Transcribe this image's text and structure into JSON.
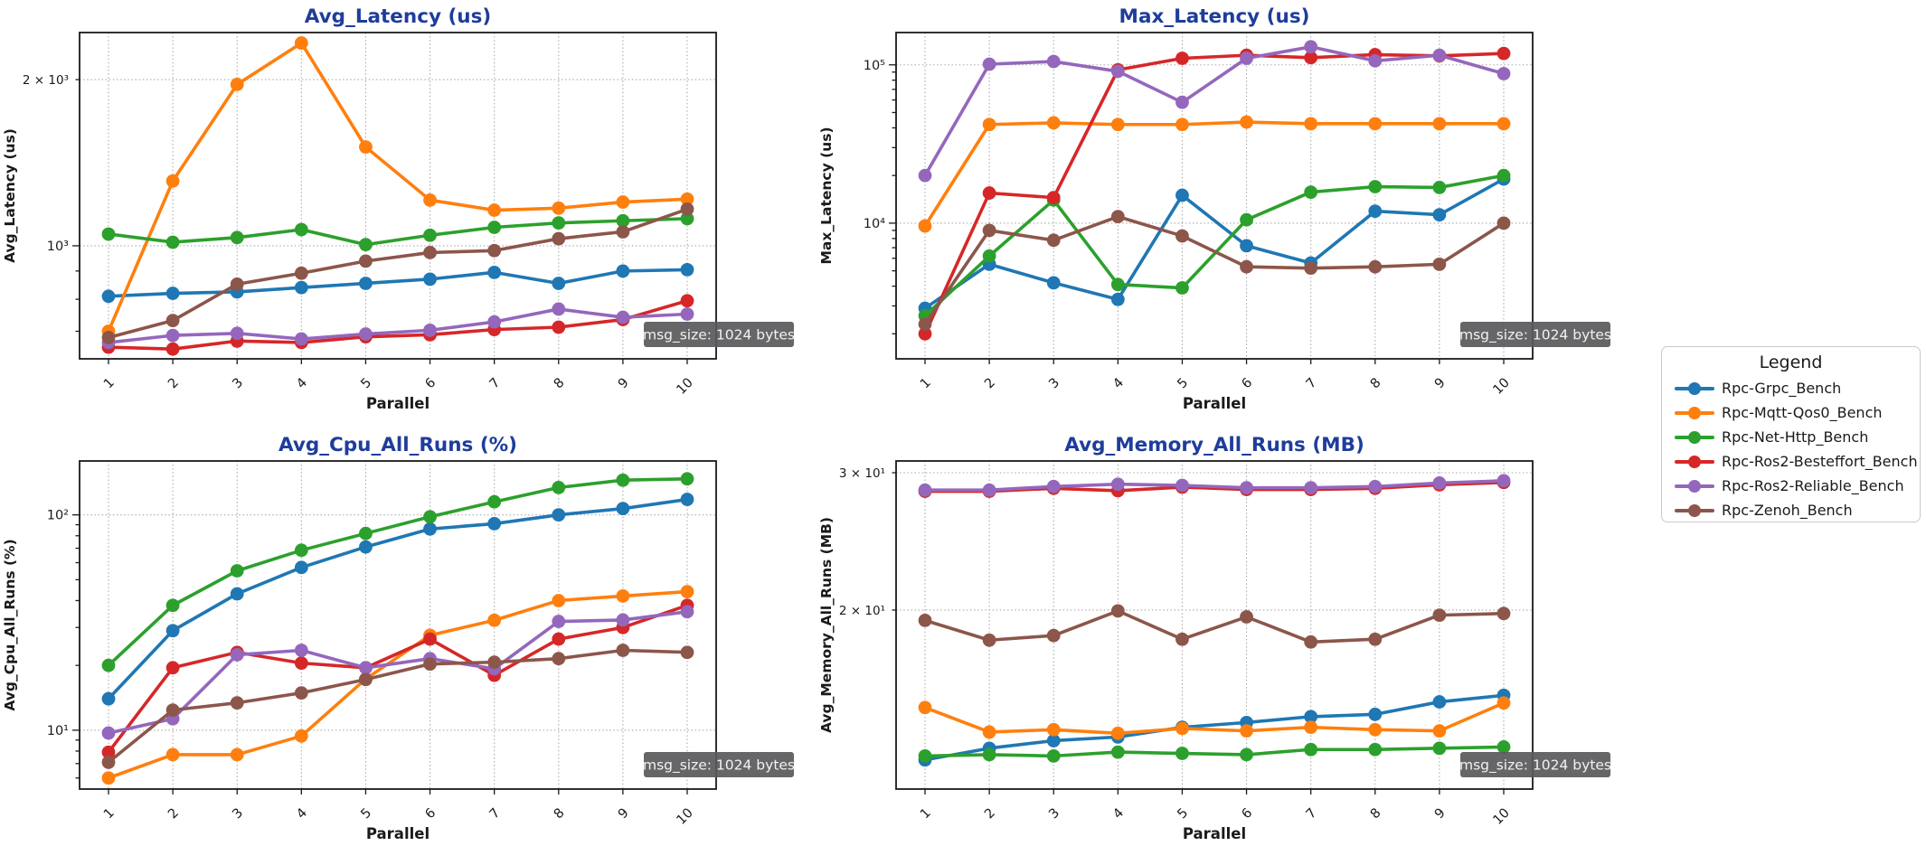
{
  "window": {
    "background": "#ffffff"
  },
  "styles": {
    "title_color": "#1e3d9b",
    "spine_color": "#1a1a1a",
    "grid_color": "#aaaaaa",
    "tick_label_color": "#1a1a1a",
    "annotation_bg": "#59595b",
    "annotation_fg": "#f2f2f2"
  },
  "annotation_label": "msg_size: 1024 bytes",
  "legend": {
    "title": "Legend",
    "position": "right-center",
    "items": [
      {
        "label": "Rpc-Grpc_Bench",
        "color": "#1f77b4"
      },
      {
        "label": "Rpc-Mqtt-Qos0_Bench",
        "color": "#ff7f0e"
      },
      {
        "label": "Rpc-Net-Http_Bench",
        "color": "#2ca02c"
      },
      {
        "label": "Rpc-Ros2-Besteffort_Bench",
        "color": "#d62728"
      },
      {
        "label": "Rpc-Ros2-Reliable_Bench",
        "color": "#9467bd"
      },
      {
        "label": "Rpc-Zenoh_Bench",
        "color": "#8c564b"
      }
    ]
  },
  "chart_data": [
    {
      "id": "avg-latency",
      "type": "line",
      "title": "Avg_Latency (us)",
      "xlabel": "Parallel",
      "ylabel": "Avg_Latency (us)",
      "yscale": "log",
      "grid": true,
      "annotation": "msg_size: 1024 bytes",
      "x": [
        1,
        2,
        3,
        4,
        5,
        6,
        7,
        8,
        9,
        10
      ],
      "ylim": [
        624,
        2434
      ],
      "yticks": [
        {
          "v": 1000,
          "label": "10³",
          "major": true
        },
        {
          "v": 2000,
          "label": "2 × 10³",
          "major": false
        }
      ],
      "series": [
        {
          "name": "Rpc-Grpc_Bench",
          "color": "#1f77b4",
          "values": [
            810,
            820,
            825,
            840,
            855,
            870,
            895,
            855,
            900,
            905
          ]
        },
        {
          "name": "Rpc-Mqtt-Qos0_Bench",
          "color": "#ff7f0e",
          "values": [
            700,
            1310,
            1960,
            2330,
            1510,
            1210,
            1160,
            1170,
            1200,
            1215
          ]
        },
        {
          "name": "Rpc-Net-Http_Bench",
          "color": "#2ca02c",
          "values": [
            1050,
            1015,
            1035,
            1070,
            1005,
            1045,
            1080,
            1100,
            1110,
            1120
          ]
        },
        {
          "name": "Rpc-Ros2-Besteffort_Bench",
          "color": "#d62728",
          "values": [
            655,
            650,
            672,
            668,
            684,
            690,
            705,
            712,
            735,
            795
          ]
        },
        {
          "name": "Rpc-Ros2-Reliable_Bench",
          "color": "#9467bd",
          "values": [
            668,
            688,
            694,
            678,
            692,
            703,
            728,
            768,
            742,
            752
          ]
        },
        {
          "name": "Rpc-Zenoh_Bench",
          "color": "#8c564b",
          "values": [
            682,
            732,
            852,
            892,
            938,
            972,
            980,
            1030,
            1060,
            1165
          ]
        }
      ]
    },
    {
      "id": "max-latency",
      "type": "line",
      "title": "Max_Latency (us)",
      "xlabel": "Parallel",
      "ylabel": "Max_Latency (us)",
      "yscale": "log",
      "grid": true,
      "annotation": "msg_size: 1024 bytes",
      "x": [
        1,
        2,
        3,
        4,
        5,
        6,
        7,
        8,
        9,
        10
      ],
      "ylim": [
        1390,
        160000
      ],
      "yticks": [
        {
          "v": 10000,
          "label": "10⁴",
          "major": true
        },
        {
          "v": 100000,
          "label": "10⁵",
          "major": true
        }
      ],
      "series": [
        {
          "name": "Rpc-Grpc_Bench",
          "color": "#1f77b4",
          "values": [
            2900,
            5500,
            4200,
            3300,
            15000,
            7200,
            5600,
            11900,
            11300,
            19000
          ]
        },
        {
          "name": "Rpc-Mqtt-Qos0_Bench",
          "color": "#ff7f0e",
          "values": [
            9600,
            42000,
            43000,
            42000,
            42000,
            43500,
            42500,
            42500,
            42500,
            42500
          ]
        },
        {
          "name": "Rpc-Net-Http_Bench",
          "color": "#2ca02c",
          "values": [
            2600,
            6200,
            14000,
            4100,
            3900,
            10500,
            15700,
            17000,
            16800,
            20000
          ]
        },
        {
          "name": "Rpc-Ros2-Besteffort_Bench",
          "color": "#d62728",
          "values": [
            2000,
            15500,
            14500,
            93000,
            110000,
            115000,
            111000,
            116000,
            114000,
            118000
          ]
        },
        {
          "name": "Rpc-Ros2-Reliable_Bench",
          "color": "#9467bd",
          "values": [
            20000,
            101000,
            105000,
            91000,
            58000,
            110000,
            130000,
            106000,
            115000,
            88000
          ]
        },
        {
          "name": "Rpc-Zenoh_Bench",
          "color": "#8c564b",
          "values": [
            2300,
            9000,
            7800,
            11000,
            8300,
            5300,
            5200,
            5300,
            5500,
            10000
          ]
        }
      ]
    },
    {
      "id": "avg-cpu",
      "type": "line",
      "title": "Avg_Cpu_All_Runs (%)",
      "xlabel": "Parallel",
      "ylabel": "Avg_Cpu_All_Runs (%)",
      "yscale": "log",
      "grid": true,
      "annotation": "msg_size: 1024 bytes",
      "x": [
        1,
        2,
        3,
        4,
        5,
        6,
        7,
        8,
        9,
        10
      ],
      "ylim": [
        5.33,
        178
      ],
      "yticks": [
        {
          "v": 10,
          "label": "10¹",
          "major": true
        },
        {
          "v": 100,
          "label": "10²",
          "major": true
        }
      ],
      "series": [
        {
          "name": "Rpc-Grpc_Bench",
          "color": "#1f77b4",
          "values": [
            14,
            29,
            43,
            57,
            71,
            86,
            91,
            100,
            107,
            118
          ]
        },
        {
          "name": "Rpc-Mqtt-Qos0_Bench",
          "color": "#ff7f0e",
          "values": [
            6.0,
            7.7,
            7.7,
            9.4,
            17.3,
            27.6,
            32.4,
            40,
            42,
            44
          ]
        },
        {
          "name": "Rpc-Net-Http_Bench",
          "color": "#2ca02c",
          "values": [
            20,
            38,
            55,
            68.5,
            82,
            98,
            115,
            134,
            145,
            147
          ]
        },
        {
          "name": "Rpc-Ros2-Besteffort_Bench",
          "color": "#d62728",
          "values": [
            7.9,
            19.5,
            23,
            20.5,
            19.5,
            26.5,
            18,
            26.5,
            30,
            38
          ]
        },
        {
          "name": "Rpc-Ros2-Reliable_Bench",
          "color": "#9467bd",
          "values": [
            9.7,
            11.3,
            22.4,
            23.5,
            19.5,
            21.5,
            19.3,
            32,
            32.5,
            35.5
          ]
        },
        {
          "name": "Rpc-Zenoh_Bench",
          "color": "#8c564b",
          "values": [
            7.1,
            12.4,
            13.4,
            14.9,
            17.2,
            20.3,
            20.7,
            21.5,
            23.5,
            23
          ]
        }
      ]
    },
    {
      "id": "avg-memory",
      "type": "line",
      "title": "Avg_Memory_All_Runs (MB)",
      "xlabel": "Parallel",
      "ylabel": "Avg_Memory_All_Runs (MB)",
      "yscale": "log",
      "grid": true,
      "annotation": "msg_size: 1024 bytes",
      "x": [
        1,
        2,
        3,
        4,
        5,
        6,
        7,
        8,
        9,
        10
      ],
      "ylim": [
        11.79,
        31.06
      ],
      "yticks": [
        {
          "v": 20,
          "label": "2 × 10¹",
          "major": false
        },
        {
          "v": 30,
          "label": "3 × 10¹",
          "major": false
        }
      ],
      "series": [
        {
          "name": "Rpc-Grpc_Bench",
          "color": "#1f77b4",
          "values": [
            12.85,
            13.3,
            13.6,
            13.75,
            14.15,
            14.35,
            14.6,
            14.7,
            15.25,
            15.55
          ]
        },
        {
          "name": "Rpc-Mqtt-Qos0_Bench",
          "color": "#ff7f0e",
          "values": [
            15.0,
            13.95,
            14.05,
            13.9,
            14.1,
            14.0,
            14.15,
            14.05,
            14.0,
            15.2
          ]
        },
        {
          "name": "Rpc-Net-Http_Bench",
          "color": "#2ca02c",
          "values": [
            13.0,
            13.05,
            13.0,
            13.15,
            13.1,
            13.05,
            13.25,
            13.25,
            13.3,
            13.35
          ]
        },
        {
          "name": "Rpc-Ros2-Besteffort_Bench",
          "color": "#d62728",
          "values": [
            28.4,
            28.4,
            28.65,
            28.45,
            28.75,
            28.55,
            28.55,
            28.65,
            28.95,
            29.15
          ]
        },
        {
          "name": "Rpc-Ros2-Reliable_Bench",
          "color": "#9467bd",
          "values": [
            28.5,
            28.5,
            28.8,
            29.0,
            28.9,
            28.7,
            28.7,
            28.8,
            29.1,
            29.3
          ]
        },
        {
          "name": "Rpc-Zenoh_Bench",
          "color": "#8c564b",
          "values": [
            19.4,
            18.3,
            18.55,
            19.95,
            18.35,
            19.6,
            18.2,
            18.35,
            19.7,
            19.8
          ]
        }
      ]
    }
  ]
}
